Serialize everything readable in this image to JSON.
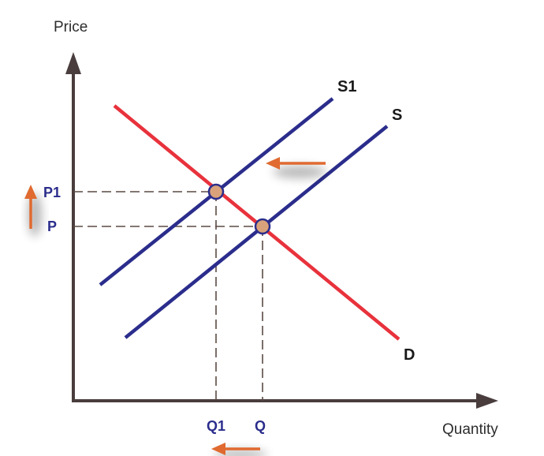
{
  "axes": {
    "x_label": "Quantity",
    "y_label": "Price"
  },
  "curves": {
    "demand_label": "D",
    "supply_label": "S",
    "new_supply_label": "S1"
  },
  "ticks": {
    "q1": "Q1",
    "q": "Q",
    "p1": "P1",
    "p": "P"
  },
  "shift_direction": {
    "supply": "left",
    "price": "up",
    "quantity": "left"
  },
  "colors": {
    "axis": "#4a3d3d",
    "demand": "#e8323c",
    "supply": "#2b2d8c",
    "tick_text": "#2b2d8c",
    "dashed": "#5a4a44",
    "arrow": "#e06a30",
    "equilibrium_fill": "#d9a27a",
    "equilibrium_stroke": "#2b2d8c"
  }
}
